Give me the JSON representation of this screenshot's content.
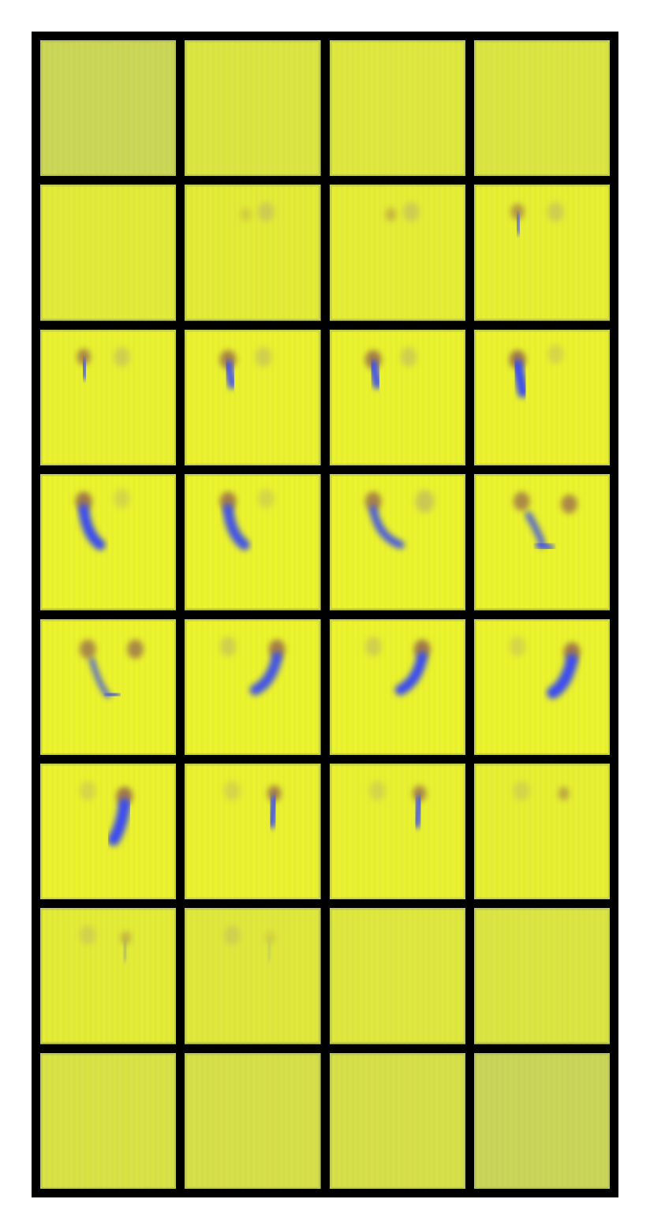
{
  "image": {
    "kind": "frame-sequence-grid",
    "grid": {
      "rows": 8,
      "columns": 4
    },
    "colors": {
      "frame_border": "#000000",
      "page_background": "#ffffff",
      "tile_bright": "#eef52a",
      "tile_dim": "#c7d45a",
      "blob_head": "#a0784a",
      "blob_body": "#3a4cf0",
      "ghost": "#b9ae6a"
    },
    "frames": [
      {
        "bright": 0.1,
        "blob": null
      },
      {
        "bright": 0.55,
        "blob": null
      },
      {
        "bright": 0.6,
        "blob": null
      },
      {
        "bright": 0.55,
        "blob": null
      },
      {
        "bright": 0.7,
        "blob": null
      },
      {
        "bright": 0.75,
        "blob": {
          "shape": "faint",
          "intensity": 0.25
        }
      },
      {
        "bright": 0.8,
        "blob": {
          "shape": "faint",
          "intensity": 0.45
        }
      },
      {
        "bright": 0.85,
        "blob": {
          "shape": "short",
          "intensity": 0.7
        }
      },
      {
        "bright": 0.9,
        "blob": {
          "shape": "short",
          "intensity": 0.85
        }
      },
      {
        "bright": 0.92,
        "blob": {
          "shape": "medium",
          "intensity": 0.9
        }
      },
      {
        "bright": 0.93,
        "blob": {
          "shape": "medium",
          "intensity": 0.95
        }
      },
      {
        "bright": 0.95,
        "blob": {
          "shape": "long",
          "intensity": 1.0
        }
      },
      {
        "bright": 0.96,
        "blob": {
          "shape": "curl-left",
          "intensity": 1.0
        }
      },
      {
        "bright": 0.96,
        "blob": {
          "shape": "curl-left",
          "intensity": 0.95
        }
      },
      {
        "bright": 0.96,
        "blob": {
          "shape": "curl-left-split",
          "intensity": 0.9
        }
      },
      {
        "bright": 0.96,
        "blob": {
          "shape": "v-split",
          "intensity": 0.85
        }
      },
      {
        "bright": 0.96,
        "blob": {
          "shape": "v-split-wide",
          "intensity": 0.85
        }
      },
      {
        "bright": 0.96,
        "blob": {
          "shape": "curl-right",
          "intensity": 0.95
        }
      },
      {
        "bright": 0.96,
        "blob": {
          "shape": "curl-right",
          "intensity": 1.0
        }
      },
      {
        "bright": 0.96,
        "blob": {
          "shape": "curl-right-long",
          "intensity": 1.0
        }
      },
      {
        "bright": 0.95,
        "blob": {
          "shape": "right-long",
          "intensity": 1.0
        }
      },
      {
        "bright": 0.92,
        "blob": {
          "shape": "right-medium",
          "intensity": 0.9
        }
      },
      {
        "bright": 0.9,
        "blob": {
          "shape": "right-medium",
          "intensity": 0.85
        }
      },
      {
        "bright": 0.85,
        "blob": {
          "shape": "right-thin",
          "intensity": 0.6
        }
      },
      {
        "bright": 0.75,
        "blob": {
          "shape": "right-faint",
          "intensity": 0.45
        }
      },
      {
        "bright": 0.65,
        "blob": {
          "shape": "right-faint",
          "intensity": 0.2
        }
      },
      {
        "bright": 0.6,
        "blob": null
      },
      {
        "bright": 0.55,
        "blob": null
      },
      {
        "bright": 0.45,
        "blob": null
      },
      {
        "bright": 0.4,
        "blob": null
      },
      {
        "bright": 0.4,
        "blob": null
      },
      {
        "bright": 0.05,
        "blob": null
      }
    ]
  }
}
